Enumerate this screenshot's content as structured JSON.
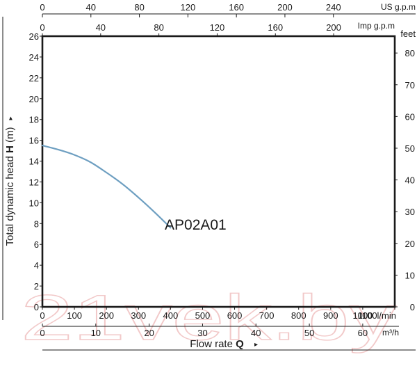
{
  "chart_data": {
    "type": "line",
    "series": [
      {
        "name": "AP02A01",
        "x": [
          0,
          50,
          100,
          150,
          200,
          250,
          300,
          350,
          400
        ],
        "y": [
          15.5,
          15.1,
          14.6,
          13.9,
          12.9,
          11.8,
          10.5,
          9.1,
          7.6
        ]
      }
    ],
    "curve_label": "AP02A01",
    "xlabel": "Flow rate",
    "xlabel_symbol": "Q",
    "xlabel_arrow": "▸",
    "ylabel": "Total dynamic head",
    "ylabel_symbol": "H",
    "ylabel_unit": "(m)",
    "ylabel_arrow": "▸",
    "xlim": [
      0,
      1100
    ],
    "ylim": [
      0,
      26
    ],
    "grid": false,
    "axes": {
      "lpm": {
        "unit_label": "l/min",
        "ticks": [
          0,
          100,
          200,
          300,
          400,
          500,
          600,
          700,
          800,
          900,
          1000
        ],
        "end_tick": 1100,
        "end_tick_text": "1100l/min"
      },
      "m3h": {
        "unit_label": "m³/h",
        "ticks": [
          0,
          10,
          20,
          30,
          40,
          50,
          60
        ]
      },
      "us_gpm": {
        "unit_label": "US g.p.m",
        "ticks": [
          0,
          40,
          80,
          120,
          160,
          200,
          240
        ]
      },
      "imp_gpm": {
        "unit_label": "Imp g.p.m",
        "ticks": [
          0,
          40,
          80,
          120,
          160,
          200
        ]
      },
      "head_m": {
        "ticks": [
          0,
          2,
          4,
          6,
          8,
          10,
          12,
          14,
          16,
          18,
          20,
          22,
          24,
          26
        ]
      },
      "head_ft": {
        "unit_label": "feet",
        "ticks": [
          0,
          10,
          20,
          30,
          40,
          50,
          60,
          70,
          80
        ]
      }
    },
    "line_color": "#6e9fc1",
    "axis_color": "#1a1a1a"
  },
  "watermark": {
    "text": "21vek.by",
    "color": "#f2c9c9"
  }
}
